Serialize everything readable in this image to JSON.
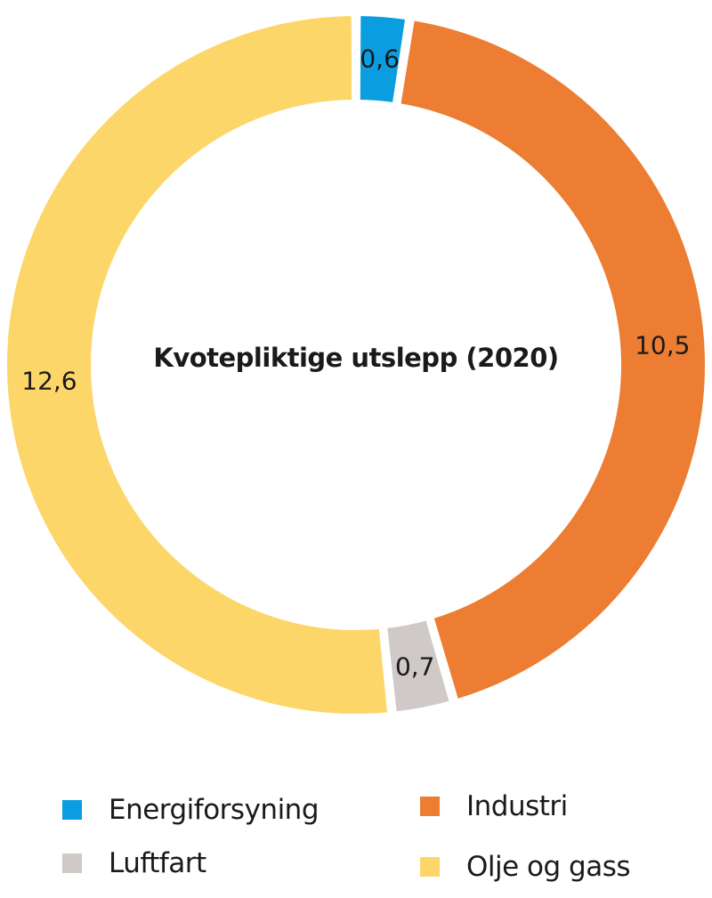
{
  "chart_data": {
    "type": "pie",
    "variant": "donut",
    "title": "Kvotepliktige utslepp (2020)",
    "start_angle": "12 o'clock",
    "direction": "clockwise",
    "categories": [
      "Energiforsyning",
      "Industri",
      "Luftfart",
      "Olje og gass"
    ],
    "values": [
      0.6,
      10.5,
      0.7,
      12.6
    ],
    "value_labels": [
      "0,6",
      "10,5",
      "0,7",
      "12,6"
    ],
    "colors": [
      "#0a9ee0",
      "#ec7d33",
      "#cfc9c7",
      "#fdd66a"
    ],
    "legend_position": "bottom",
    "grid": false
  },
  "center_title": "Kvotepliktige utslepp (2020)",
  "legend": {
    "items": [
      {
        "label": "Energiforsyning",
        "color": "#0a9ee0"
      },
      {
        "label": "Industri",
        "color": "#ec7d33"
      },
      {
        "label": "Luftfart",
        "color": "#cfc9c7"
      },
      {
        "label": "Olje og gass",
        "color": "#fdd66a"
      }
    ]
  }
}
